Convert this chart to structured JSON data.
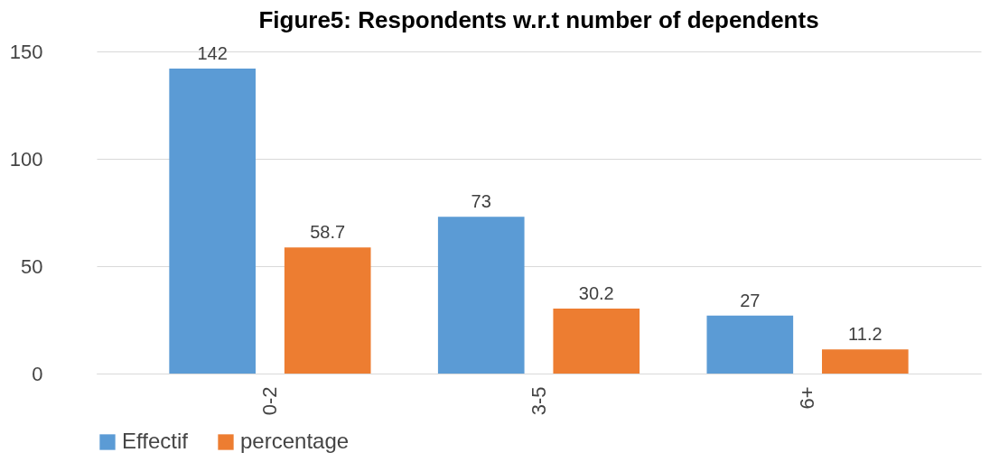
{
  "chart_data": {
    "type": "bar",
    "title": "Figure5: Respondents w.r.t number of  dependents",
    "categories": [
      "0-2",
      "3-5",
      "6+"
    ],
    "series": [
      {
        "name": "Effectif",
        "color": "#5b9bd5",
        "values": [
          142,
          73,
          27
        ]
      },
      {
        "name": "percentage",
        "color": "#ed7d31",
        "values": [
          58.7,
          30.2,
          11.2
        ]
      }
    ],
    "ylim": [
      0,
      150
    ],
    "yticks": [
      0,
      50,
      100,
      150
    ],
    "grid": "y",
    "legend": "bottom",
    "data_labels": true
  }
}
